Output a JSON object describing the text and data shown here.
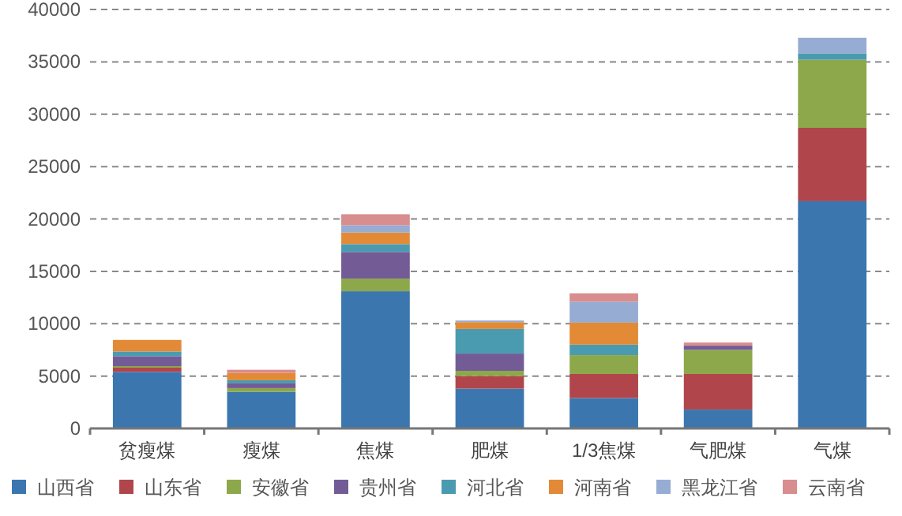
{
  "chart_data": {
    "type": "bar",
    "stacked": true,
    "categories": [
      "贫瘦煤",
      "瘦煤",
      "焦煤",
      "肥煤",
      "1/3焦煤",
      "气肥煤",
      "气煤"
    ],
    "series": [
      {
        "name": "山西省",
        "color": "#3b76af",
        "values": [
          5400,
          3500,
          13100,
          3800,
          2900,
          1800,
          21700
        ]
      },
      {
        "name": "山东省",
        "color": "#b0464b",
        "values": [
          400,
          null,
          null,
          1200,
          2300,
          3400,
          7000
        ]
      },
      {
        "name": "安徽省",
        "color": "#8da84a",
        "values": [
          150,
          350,
          1200,
          500,
          1800,
          2300,
          6500
        ]
      },
      {
        "name": "贵州省",
        "color": "#735b96",
        "values": [
          950,
          450,
          2550,
          1650,
          null,
          400,
          null
        ]
      },
      {
        "name": "河北省",
        "color": "#4b9bb0",
        "values": [
          450,
          300,
          750,
          2350,
          1000,
          null,
          600
        ]
      },
      {
        "name": "河南省",
        "color": "#e38a37",
        "values": [
          1100,
          700,
          1100,
          650,
          2100,
          null,
          null
        ]
      },
      {
        "name": "黑龙江省",
        "color": "#97acd3",
        "values": [
          null,
          null,
          700,
          150,
          2000,
          null,
          1500
        ]
      },
      {
        "name": "云南省",
        "color": "#d88d8f",
        "values": [
          null,
          300,
          1050,
          null,
          800,
          300,
          null
        ]
      }
    ],
    "ylim": [
      0,
      40000
    ],
    "yticks": [
      0,
      5000,
      10000,
      15000,
      20000,
      25000,
      30000,
      35000,
      40000
    ],
    "grid": "y",
    "legend": "bottom"
  }
}
